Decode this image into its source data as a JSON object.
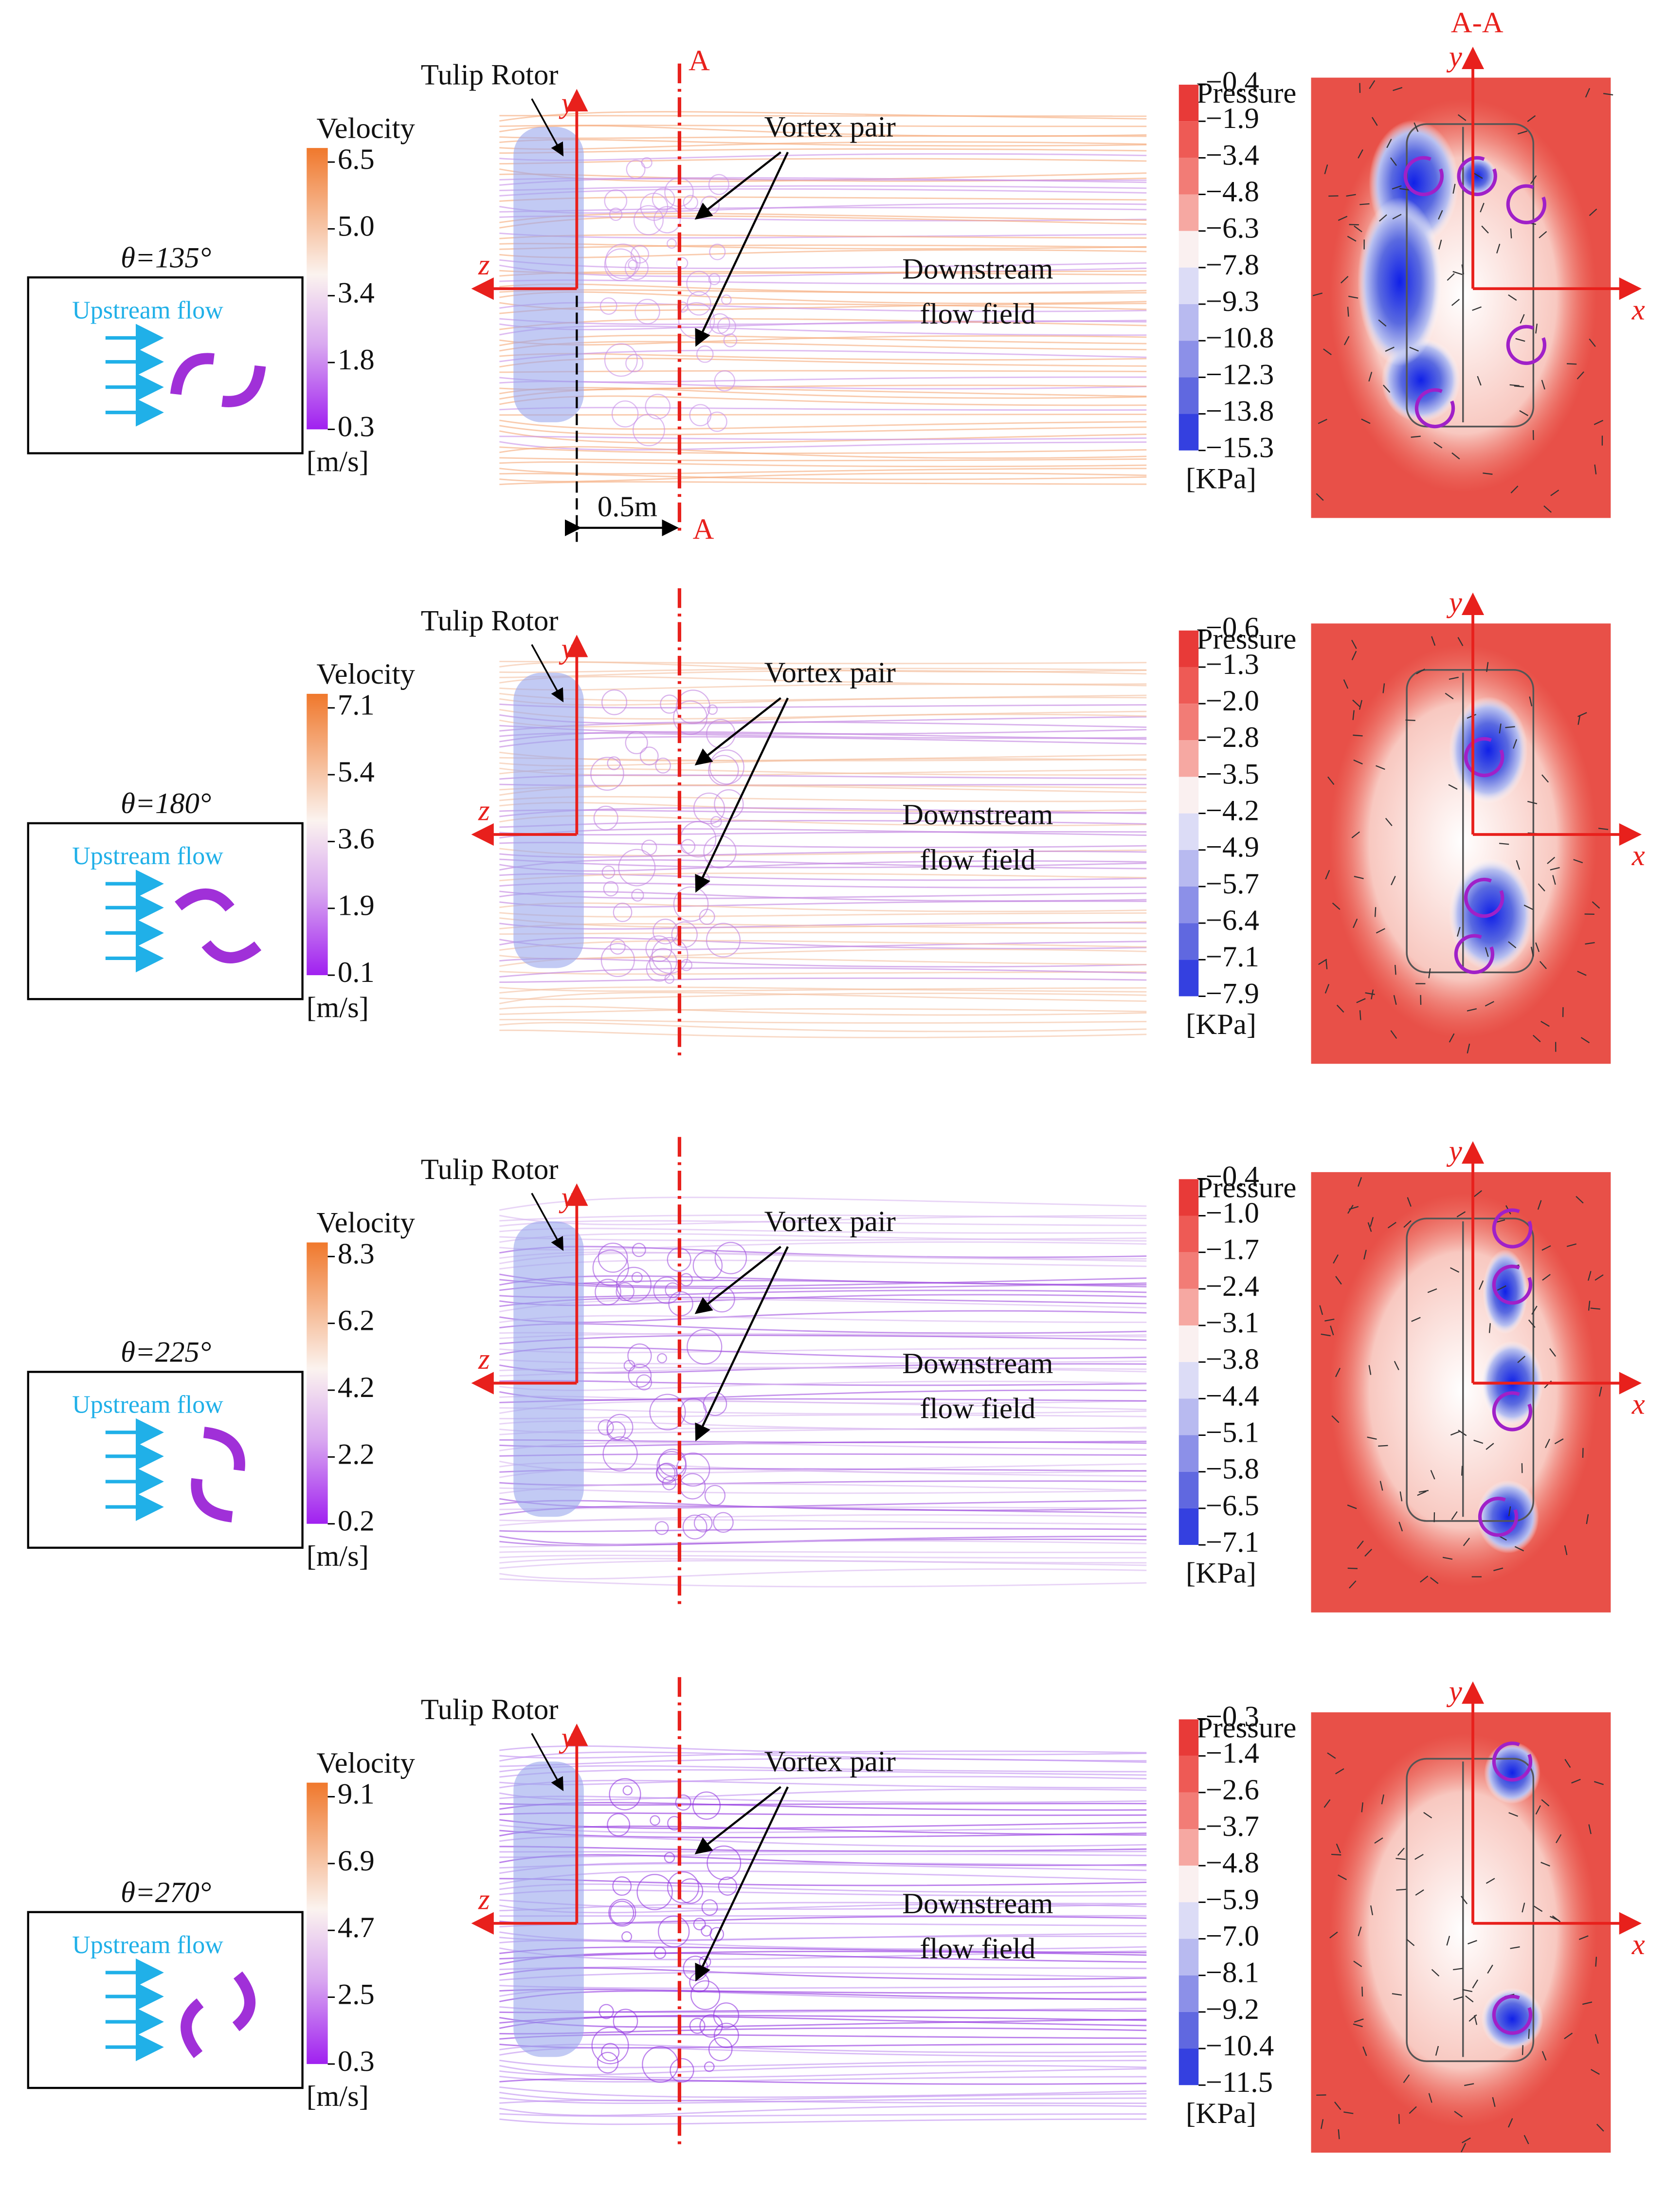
{
  "section": {
    "a_top": "A",
    "a_bottom": "A",
    "distance": "0.5m",
    "title": "A-A"
  },
  "panels": [
    {
      "theta": "θ=135°",
      "upstream": "Upstream flow",
      "velocity_title": "Velocity",
      "velocity_ticks": [
        "6.5",
        "5.0",
        "3.4",
        "1.8",
        "0.3"
      ],
      "velocity_unit": "[m/s]",
      "rotor_label": "Tulip Rotor",
      "vortex_label": "Vortex pair",
      "downstream": [
        "Downstream",
        "flow field"
      ],
      "axes": {
        "y": "y",
        "z": "z"
      },
      "pressure_title": "Pressure",
      "pressure_ticks": [
        "−0.4",
        "−1.9",
        "−3.4",
        "−4.8",
        "−6.3",
        "−7.8",
        "−9.3",
        "−10.8",
        "−12.3",
        "−13.8",
        "−15.3"
      ],
      "pressure_unit": "[KPa]",
      "section_axes": {
        "y": "y",
        "x": "x"
      }
    },
    {
      "theta": "θ=180°",
      "upstream": "Upstream flow",
      "velocity_title": "Velocity",
      "velocity_ticks": [
        "7.1",
        "5.4",
        "3.6",
        "1.9",
        "0.1"
      ],
      "velocity_unit": "[m/s]",
      "rotor_label": "Tulip Rotor",
      "vortex_label": "Vortex pair",
      "downstream": [
        "Downstream",
        "flow field"
      ],
      "axes": {
        "y": "y",
        "z": "z"
      },
      "pressure_title": "Pressure",
      "pressure_ticks": [
        "−0.6",
        "−1.3",
        "−2.0",
        "−2.8",
        "−3.5",
        "−4.2",
        "−4.9",
        "−5.7",
        "−6.4",
        "−7.1",
        "−7.9"
      ],
      "pressure_unit": "[KPa]",
      "section_axes": {
        "y": "y",
        "x": "x"
      }
    },
    {
      "theta": "θ=225°",
      "upstream": "Upstream flow",
      "velocity_title": "Velocity",
      "velocity_ticks": [
        "8.3",
        "6.2",
        "4.2",
        "2.2",
        "0.2"
      ],
      "velocity_unit": "[m/s]",
      "rotor_label": "Tulip Rotor",
      "vortex_label": "Vortex pair",
      "downstream": [
        "Downstream",
        "flow field"
      ],
      "axes": {
        "y": "y",
        "z": "z"
      },
      "pressure_title": "Pressure",
      "pressure_ticks": [
        "−0.4",
        "−1.0",
        "−1.7",
        "−2.4",
        "−3.1",
        "−3.8",
        "−4.4",
        "−5.1",
        "−5.8",
        "−6.5",
        "−7.1"
      ],
      "pressure_unit": "[KPa]",
      "section_axes": {
        "y": "y",
        "x": "x"
      }
    },
    {
      "theta": "θ=270°",
      "upstream": "Upstream flow",
      "velocity_title": "Velocity",
      "velocity_ticks": [
        "9.1",
        "6.9",
        "4.7",
        "2.5",
        "0.3"
      ],
      "velocity_unit": "[m/s]",
      "rotor_label": "Tulip Rotor",
      "vortex_label": "Vortex pair",
      "downstream": [
        "Downstream",
        "flow field"
      ],
      "axes": {
        "y": "y",
        "z": "z"
      },
      "pressure_title": "Pressure",
      "pressure_ticks": [
        "−0.3",
        "−1.4",
        "−2.6",
        "−3.7",
        "−4.8",
        "−5.9",
        "−7.0",
        "−8.1",
        "−9.2",
        "−10.4",
        "−11.5"
      ],
      "pressure_unit": "[KPa]",
      "section_axes": {
        "y": "y",
        "x": "x"
      }
    }
  ]
}
